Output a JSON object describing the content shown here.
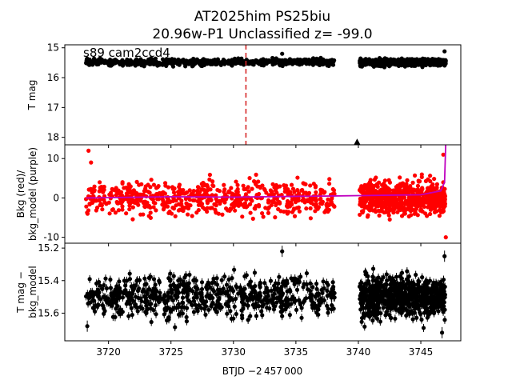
{
  "title_line1": "AT2025him  PS25biu",
  "title_line2": "20.96w-P1 Unclassified z= -99.0",
  "xlabel": "BTJD −2 457 000",
  "x_ticks": [
    3720,
    3725,
    3730,
    3735,
    3740,
    3745
  ],
  "xlim": [
    3716.5,
    3748.2
  ],
  "chart_data": [
    {
      "type": "scatter",
      "panel": "top",
      "ylabel": "T mag",
      "annotation": "s89 cam2ccd4",
      "ylim": [
        18.25,
        14.9
      ],
      "inverted_y": true,
      "y_ticks": [
        15,
        16,
        17,
        18
      ],
      "marker_color": "#000000",
      "segments": [
        {
          "x_start": 3718.2,
          "x_end": 3738.1,
          "y_center": 15.48,
          "y_spread": 0.08
        },
        {
          "x_start": 3740.1,
          "x_end": 3747.0,
          "y_center": 15.49,
          "y_spread": 0.08
        }
      ],
      "outliers": [
        {
          "x": 3733.9,
          "y": 15.2
        },
        {
          "x": 3746.9,
          "y": 15.12
        }
      ],
      "upper_limit_marker": {
        "x": 3739.9,
        "y": 18.15
      },
      "reference_line": {
        "x": 3731.0,
        "color": "#d62728",
        "style": "dashed"
      }
    },
    {
      "type": "scatter",
      "panel": "middle",
      "ylabel": "Bkg (red)/\nbkg_model (purple)",
      "ylim": [
        -11.5,
        13.5
      ],
      "y_ticks": [
        -10,
        0,
        10
      ],
      "marker_color": "#ff0000",
      "model_color": "#bf00bf",
      "segments": [
        {
          "x_start": 3718.2,
          "x_end": 3738.1,
          "y_center": 0.0,
          "y_spread": 3.0
        },
        {
          "x_start": 3740.1,
          "x_end": 3747.0,
          "y_center": 0.0,
          "y_spread": 3.0
        }
      ],
      "outliers": [
        {
          "x": 3718.4,
          "y": 12.0
        },
        {
          "x": 3718.6,
          "y": 9.0
        },
        {
          "x": 3746.8,
          "y": 11.0
        },
        {
          "x": 3747.0,
          "y": -10.0
        }
      ],
      "model_line": [
        {
          "x": 3718.2,
          "y": 0.0
        },
        {
          "x": 3725,
          "y": 0.3
        },
        {
          "x": 3730,
          "y": 0.2
        },
        {
          "x": 3735,
          "y": 0.4
        },
        {
          "x": 3738.1,
          "y": 0.5
        },
        {
          "x": 3740.1,
          "y": 0.6
        },
        {
          "x": 3745,
          "y": 0.8
        },
        {
          "x": 3746.6,
          "y": 1.8
        },
        {
          "x": 3746.9,
          "y": 4.0
        },
        {
          "x": 3747.0,
          "y": 14.5
        }
      ]
    },
    {
      "type": "scatter",
      "panel": "bottom",
      "ylabel": "T mag −\nbkg_model",
      "ylim": [
        15.77,
        15.17
      ],
      "inverted_y": true,
      "y_ticks": [
        15.2,
        15.4,
        15.6
      ],
      "marker_color": "#000000",
      "errorbars": true,
      "segments": [
        {
          "x_start": 3718.2,
          "x_end": 3738.1,
          "y_center": 15.5,
          "y_spread": 0.09
        },
        {
          "x_start": 3740.1,
          "x_end": 3747.0,
          "y_center": 15.5,
          "y_spread": 0.09
        }
      ],
      "outliers": [
        {
          "x": 3733.9,
          "y": 15.22
        },
        {
          "x": 3746.9,
          "y": 15.25
        },
        {
          "x": 3746.7,
          "y": 15.72
        },
        {
          "x": 3718.3,
          "y": 15.68
        }
      ]
    }
  ]
}
